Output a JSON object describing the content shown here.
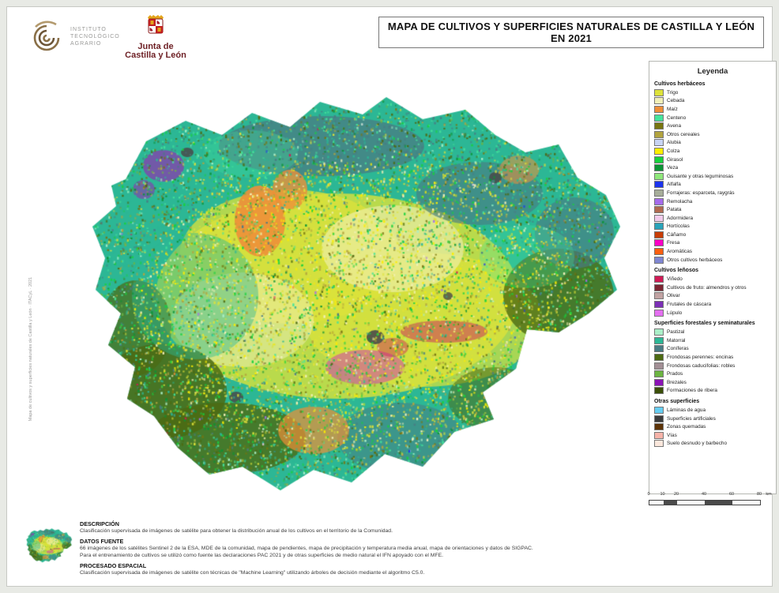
{
  "header": {
    "title": "MAPA DE CULTIVOS Y SUPERFICIES NATURALES DE CASTILLA Y LEÓN EN 2021",
    "logo_itacyl": {
      "lines": [
        "INSTITUTO",
        "TECNOLÓGICO",
        "AGRARIO"
      ]
    },
    "logo_junta": {
      "lines": [
        "Junta de",
        "Castilla y León"
      ]
    }
  },
  "legend": {
    "title": "Leyenda",
    "sections": [
      {
        "label": "Cultivos herbáceos",
        "items": [
          {
            "label": "Trigo",
            "color": "#dde23a"
          },
          {
            "label": "Cebada",
            "color": "#f2f0b8"
          },
          {
            "label": "Maíz",
            "color": "#ee8f38"
          },
          {
            "label": "Centeno",
            "color": "#45e49b"
          },
          {
            "label": "Avena",
            "color": "#787510"
          },
          {
            "label": "Otros cereales",
            "color": "#b2a33e"
          },
          {
            "label": "Alubia",
            "color": "#c8d4f4"
          },
          {
            "label": "Colza",
            "color": "#fcee00"
          },
          {
            "label": "Girasol",
            "color": "#17d23d"
          },
          {
            "label": "Veza",
            "color": "#0b9435"
          },
          {
            "label": "Guisante y otras leguminosas",
            "color": "#8fe77b"
          },
          {
            "label": "Alfalfa",
            "color": "#1c33ee"
          },
          {
            "label": "Forrajeras: esparceta, raygrás",
            "color": "#a6ad99"
          },
          {
            "label": "Remolacha",
            "color": "#a56cec"
          },
          {
            "label": "Patata",
            "color": "#b16a50"
          },
          {
            "label": "Adormidera",
            "color": "#f2cbec"
          },
          {
            "label": "Hortícolas",
            "color": "#29a3b9"
          },
          {
            "label": "Cáñamo",
            "color": "#c83d06"
          },
          {
            "label": "Fresa",
            "color": "#fb00c6"
          },
          {
            "label": "Aromáticas",
            "color": "#fb5f10"
          },
          {
            "label": "Otros cultivos herbáceos",
            "color": "#7f86d2"
          }
        ]
      },
      {
        "label": "Cultivos leñosos",
        "items": [
          {
            "label": "Viñedo",
            "color": "#d01a55"
          },
          {
            "label": "Cultivos de fruto: almendros y otros",
            "color": "#7b2532"
          },
          {
            "label": "Olivar",
            "color": "#c2a3a3"
          },
          {
            "label": "Frutales de cáscara",
            "color": "#7b2fb5"
          },
          {
            "label": "Lúpulo",
            "color": "#e46ff0"
          }
        ]
      },
      {
        "label": "Superficies forestales y seminaturales",
        "items": [
          {
            "label": "Pastizal",
            "color": "#abefc8"
          },
          {
            "label": "Matorral",
            "color": "#2cb795"
          },
          {
            "label": "Coníferas",
            "color": "#4a7b83"
          },
          {
            "label": "Frondosas perennes: encinas",
            "color": "#4c6a12"
          },
          {
            "label": "Frondosas caducifolias: robles",
            "color": "#a28f95"
          },
          {
            "label": "Prados",
            "color": "#6cb442"
          },
          {
            "label": "Brezales",
            "color": "#8a12b5"
          },
          {
            "label": "Formaciones de ribera",
            "color": "#3b4f08"
          }
        ]
      },
      {
        "label": "Otras superficies",
        "items": [
          {
            "label": "Láminas de agua",
            "color": "#66cdf1"
          },
          {
            "label": "Superficies artificiales",
            "color": "#3b3b3b"
          },
          {
            "label": "Zonas quemadas",
            "color": "#5c3307"
          },
          {
            "label": "Vías",
            "color": "#f7b3a9"
          },
          {
            "label": "Suelo desnudo y barbecho",
            "color": "#fbe7dc"
          }
        ]
      }
    ]
  },
  "scalebar": {
    "labels": [
      "0",
      "10",
      "20",
      "40",
      "60",
      "80"
    ],
    "unit": "km"
  },
  "footer": {
    "sections": [
      {
        "header": "DESCRIPCIÓN",
        "lines": [
          "Clasificación supervisada de imágenes de satélite para obtener la distribución anual de los cultivos en el territorio de la Comunidad."
        ]
      },
      {
        "header": "DATOS FUENTE",
        "lines": [
          "66 imágenes de los satélites Sentinel 2 de la ESA, MDE de la comunidad, mapa de pendientes, mapa de precipitación y temperatura media anual, mapa de orientaciones y datos de SIGPAC.",
          "Para el entrenamiento de cultivos se utilizó como fuente las declaraciones PAC 2021 y de otras superficies de medio natural el IFN apoyado con el MFE."
        ]
      },
      {
        "header": "PROCESADO ESPACIAL",
        "lines": [
          "Clasificación supervisada de imágenes de satélite con técnicas de \"Machine Learning\" utilizando árboles de decisión mediante el algoritmo C5.0."
        ]
      }
    ]
  },
  "credit": "Mapa de cultivos y superficies naturales de Castilla y León · ITACyL · 2021"
}
